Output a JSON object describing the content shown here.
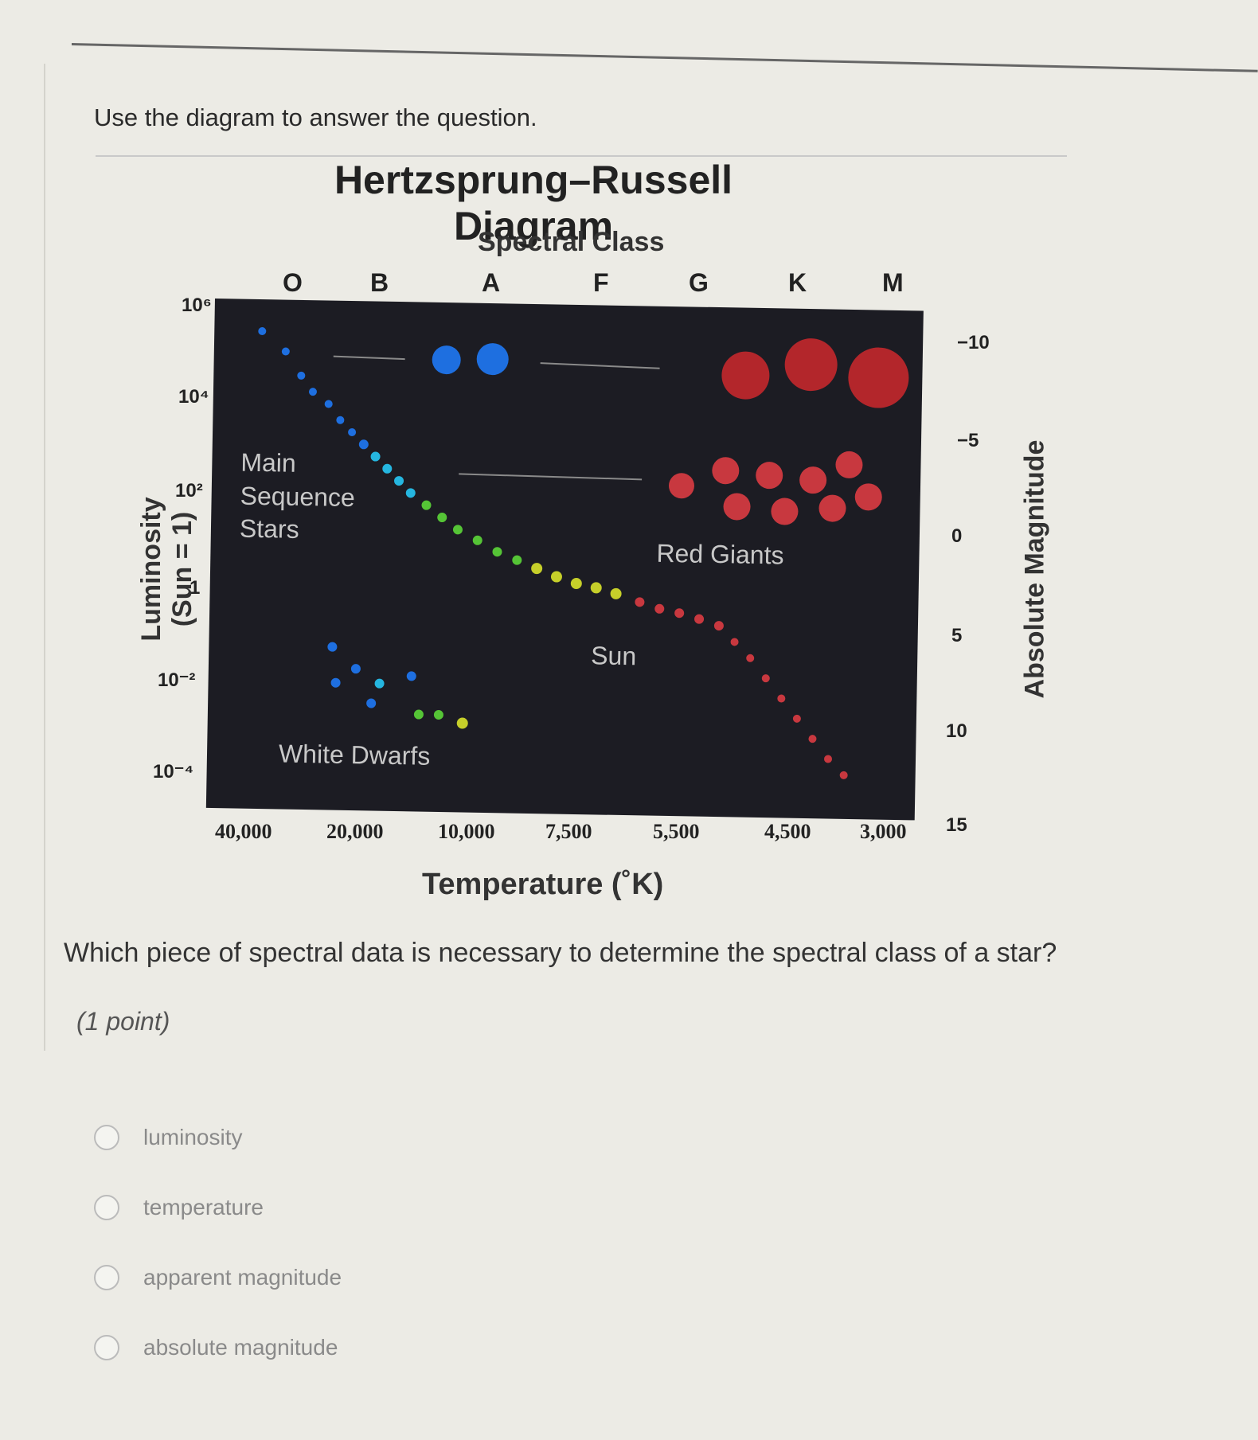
{
  "instructions": "Use the diagram to answer the question.",
  "diagram": {
    "title": "Hertzsprung–Russell Diagram",
    "subtitle": "Spectral Class",
    "spectral_classes": [
      "O",
      "B",
      "A",
      "F",
      "G",
      "K",
      "M"
    ],
    "luminosity_ticks": [
      "10⁶",
      "10⁴",
      "10²",
      "1",
      "10⁻²",
      "10⁻⁴"
    ],
    "magnitude_ticks": [
      "−10",
      "−5",
      "0",
      "5",
      "10",
      "15"
    ],
    "temperature_ticks": [
      "40,000",
      "20,000",
      "10,000",
      "7,500",
      "5,500",
      "4,500",
      "3,000"
    ],
    "ylabel_left": "Luminosity (Sun = 1)",
    "ylabel_right": "Absolute Magnitude",
    "xlabel": "Temperature (˚K)",
    "regions": {
      "main_sequence": "Main\nSequence\nStars",
      "red_giants": "Red Giants",
      "white_dwarfs": "White Dwarfs",
      "sun": "Sun"
    },
    "colors": {
      "blue": "#1e6fe0",
      "cyan": "#25b6e0",
      "green": "#55c436",
      "yellow": "#c6cf2a",
      "red": "#c8383f",
      "supergiant_red": "#b3262b",
      "background": "#1c1c23"
    }
  },
  "question": "Which piece of spectral data is necessary to determine the spectral class of a star?",
  "points": "(1 point)",
  "options": [
    {
      "label": "luminosity"
    },
    {
      "label": "temperature"
    },
    {
      "label": "apparent magnitude"
    },
    {
      "label": "absolute magnitude"
    }
  ]
}
